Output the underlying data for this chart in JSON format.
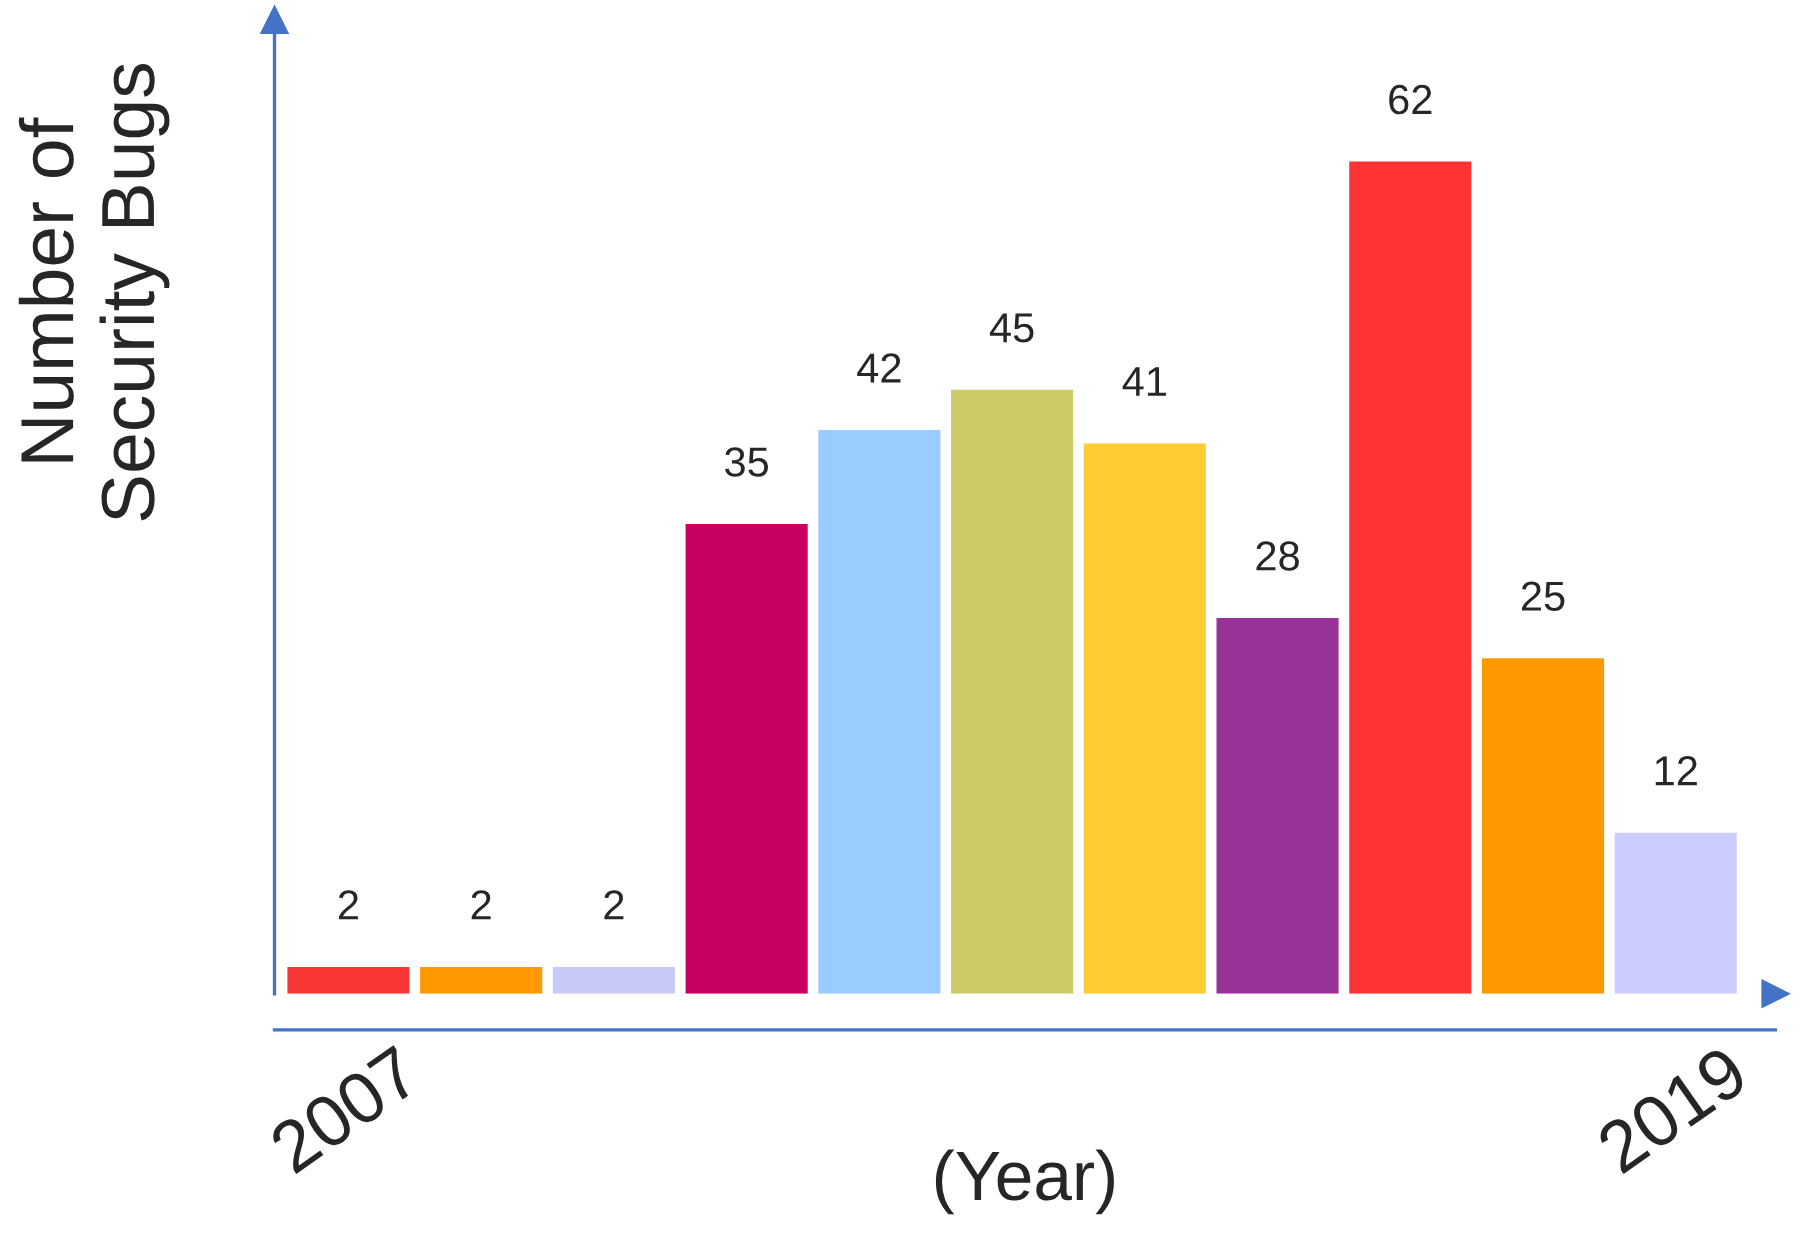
{
  "chart_data": {
    "type": "bar",
    "xlabel": "(Year)",
    "ylabel": "Number of\nSecurity Bugs",
    "categories": [
      "2007",
      null,
      null,
      null,
      null,
      null,
      null,
      null,
      null,
      null,
      "2019"
    ],
    "values": [
      2,
      2,
      2,
      35,
      42,
      45,
      41,
      28,
      62,
      25,
      12
    ],
    "colors": [
      "#f93636",
      "#ff9900",
      "#c9c9f9",
      "#c8005f",
      "#99ccff",
      "#cccc66",
      "#ffcc33",
      "#993399",
      "#ff3333",
      "#ff9900",
      "#ccccff"
    ],
    "data_labels": true,
    "grid": false,
    "legend": false
  }
}
